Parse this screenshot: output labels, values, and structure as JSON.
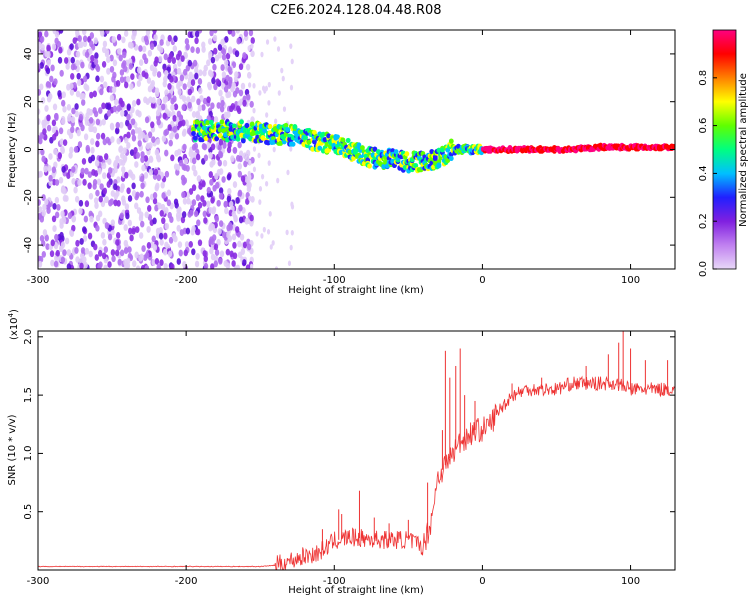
{
  "title": "C2E6.2024.128.04.48.R08",
  "colors": {
    "snr_line": "#ee3333",
    "spectrum_track": "#ff2222",
    "axis": "#000000"
  },
  "chart_data": [
    {
      "type": "heatmap",
      "xlabel": "Height of straight line (km)",
      "ylabel": "Frequency (Hz)",
      "xlim": [
        -300,
        130
      ],
      "ylim": [
        -50,
        50
      ],
      "x_ticks": [
        -300,
        -200,
        -100,
        0,
        100
      ],
      "y_ticks": [
        -40,
        -20,
        0,
        20,
        40
      ],
      "colorbar": {
        "label": "Normalized spectral amplitude",
        "range": [
          0,
          1
        ],
        "ticks": [
          0.0,
          0.2,
          0.4,
          0.6,
          0.8
        ],
        "colormap": [
          "#e8d8f8",
          "#c080f0",
          "#8020e0",
          "#2020ff",
          "#00c0ff",
          "#00ff80",
          "#60ff00",
          "#ffff00",
          "#ff8000",
          "#ff0000",
          "#ff0080"
        ]
      },
      "ridge": {
        "x": [
          -190,
          -170,
          -150,
          -130,
          -120,
          -110,
          -100,
          -90,
          -80,
          -70,
          -60,
          -50,
          -40,
          -30,
          -20,
          -10,
          0,
          20,
          40,
          60,
          80,
          100,
          130
        ],
        "y": [
          8,
          8,
          7,
          6,
          5,
          3,
          2,
          0,
          -3,
          -4,
          -4,
          -5,
          -5,
          -4,
          0,
          0,
          0,
          0,
          0,
          0,
          1,
          1,
          1
        ]
      }
    },
    {
      "type": "line",
      "xlabel": "Height of straight line (km)",
      "ylabel": "SNR (10 * v/v)",
      "y_multiplier": "(x10",
      "y_multiplier_exp": "4",
      "xlim": [
        -300,
        130
      ],
      "ylim": [
        0,
        20500
      ],
      "x_ticks": [
        -300,
        -200,
        -100,
        0,
        100
      ],
      "y_ticks": [
        5000,
        10000,
        15000,
        20000
      ],
      "y_tick_labels": [
        "0.5",
        "1.0",
        "1.5",
        "2.0"
      ],
      "series": [
        {
          "x": [
            -300,
            -250,
            -200,
            -150,
            -140,
            -130,
            -120,
            -110,
            -100,
            -90,
            -80,
            -70,
            -60,
            -50,
            -40,
            -35,
            -30,
            -25,
            -20,
            -15,
            -10,
            -5,
            0,
            5,
            10,
            20,
            30,
            40,
            50,
            60,
            70,
            80,
            90,
            100,
            110,
            120,
            130
          ],
          "values": [
            300,
            300,
            300,
            300,
            400,
            800,
            1200,
            1500,
            2500,
            2800,
            2700,
            2600,
            2600,
            2600,
            2000,
            4000,
            8000,
            9000,
            10000,
            11000,
            11500,
            12000,
            12000,
            12500,
            13500,
            15000,
            15500,
            15500,
            15500,
            16000,
            16000,
            16000,
            16000,
            15500,
            15500,
            15500,
            15500
          ],
          "spikes": [
            [
              -125,
              1000
            ],
            [
              -108,
              3500
            ],
            [
              -97,
              5200
            ],
            [
              -95,
              4800
            ],
            [
              -83,
              6800
            ],
            [
              -73,
              4500
            ],
            [
              -63,
              4000
            ],
            [
              -50,
              4300
            ],
            [
              -37,
              7500
            ],
            [
              -27,
              12000
            ],
            [
              -25,
              18800
            ],
            [
              -22,
              16500
            ],
            [
              -18,
              17500
            ],
            [
              -15,
              19000
            ],
            [
              -12,
              15000
            ],
            [
              -5,
              14500
            ],
            [
              20,
              16000
            ],
            [
              40,
              16500
            ],
            [
              70,
              17500
            ],
            [
              85,
              18500
            ],
            [
              92,
              19500
            ],
            [
              95,
              20500
            ],
            [
              100,
              19000
            ],
            [
              110,
              18000
            ],
            [
              125,
              18000
            ]
          ]
        }
      ]
    }
  ]
}
